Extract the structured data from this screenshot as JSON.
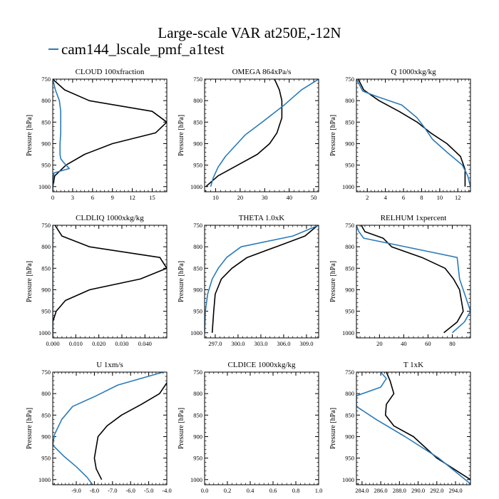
{
  "figure": {
    "title": "Large-scale VAR at250E,-12N",
    "legend": [
      {
        "label": "cam144_lscale_pmf_a1test",
        "color": "#2b7bb9",
        "marker": "—"
      }
    ],
    "colors": {
      "control": "#000000",
      "test": "#2b7bb9"
    }
  },
  "chart_data": [
    {
      "type": "line",
      "title": "CLOUD  100xfraction",
      "ylabel": "Pressure [hPa]",
      "xlabel": "",
      "xlim": [
        0,
        17.2
      ],
      "ylim": [
        1012,
        750
      ],
      "xticks": [
        0,
        3,
        6,
        9,
        12,
        15
      ],
      "xticklabels": [
        "0",
        "3",
        "6",
        "9",
        "12",
        "15"
      ],
      "yticks": [
        750,
        800,
        850,
        900,
        950,
        1000
      ],
      "yticklabels": [
        "750",
        "800",
        "850",
        "900",
        "950",
        "1000"
      ],
      "grid": false,
      "series": [
        {
          "color": "#000000",
          "x": [
            0,
            1.8,
            5.5,
            15.0,
            17.2,
            15.5,
            9.0,
            4.8,
            2.0,
            0.3,
            0,
            0
          ],
          "y": [
            750,
            775,
            800,
            825,
            850,
            875,
            900,
            925,
            950,
            975,
            1000,
            1012
          ]
        },
        {
          "name": "cam144_lscale_pmf_a1test",
          "color": "#2b7bb9",
          "x": [
            0,
            0.4,
            1.0,
            1.2,
            1.2,
            1.2,
            1.1,
            1.1,
            1.2,
            1.7,
            2.5,
            0.2,
            0,
            0
          ],
          "y": [
            750,
            775,
            800,
            825,
            850,
            875,
            900,
            925,
            935,
            945,
            958,
            968,
            990,
            1012
          ]
        }
      ]
    },
    {
      "type": "line",
      "title": "OMEGA  864xPa/s",
      "ylabel": "Pressure [hPa]",
      "xlabel": "",
      "xlim": [
        5.5,
        52
      ],
      "ylim": [
        1012,
        750
      ],
      "xticks": [
        10,
        20,
        30,
        40,
        50
      ],
      "xticklabels": [
        "10",
        "20",
        "30",
        "40",
        "50"
      ],
      "yticks": [
        750,
        800,
        850,
        900,
        950,
        1000
      ],
      "yticklabels": [
        "750",
        "800",
        "850",
        "900",
        "950",
        "1000"
      ],
      "grid": false,
      "series": [
        {
          "color": "#000000",
          "x": [
            34,
            36,
            37,
            37,
            35,
            32,
            27,
            19,
            11,
            6
          ],
          "y": [
            750,
            775,
            800,
            840,
            875,
            900,
            925,
            950,
            975,
            1000
          ]
        },
        {
          "name": "cam144_lscale_pmf_a1test",
          "color": "#2b7bb9",
          "x": [
            52,
            45,
            38,
            29,
            22,
            18,
            14,
            11,
            9,
            8
          ],
          "y": [
            750,
            775,
            810,
            850,
            880,
            905,
            930,
            955,
            980,
            1000
          ]
        }
      ]
    },
    {
      "type": "line",
      "title": "Q  1000xkg/kg",
      "ylabel": "Pressure [hPa]",
      "xlabel": "",
      "xlim": [
        0.8,
        13.4
      ],
      "ylim": [
        1012,
        750
      ],
      "xticks": [
        2,
        4,
        6,
        8,
        10,
        12
      ],
      "xticklabels": [
        "2",
        "4",
        "6",
        "8",
        "10",
        "12"
      ],
      "yticks": [
        750,
        800,
        850,
        900,
        950,
        1000
      ],
      "yticklabels": [
        "750",
        "800",
        "850",
        "900",
        "950",
        "1000"
      ],
      "grid": false,
      "series": [
        {
          "color": "#000000",
          "x": [
            1.0,
            1.6,
            3.3,
            5.5,
            7.5,
            9.0,
            10.8,
            12.3,
            12.8,
            12.8
          ],
          "y": [
            750,
            775,
            800,
            825,
            850,
            875,
            900,
            930,
            960,
            1000
          ]
        },
        {
          "name": "cam144_lscale_pmf_a1test",
          "color": "#2b7bb9",
          "x": [
            0.8,
            1.5,
            3.0,
            5.8,
            7.5,
            8.4,
            9.2,
            10.8,
            12.5,
            13.1,
            13.4
          ],
          "y": [
            750,
            778,
            790,
            810,
            840,
            865,
            890,
            920,
            950,
            975,
            1000
          ]
        }
      ]
    },
    {
      "type": "line",
      "title": "CLDLIQ  1000xkg/kg",
      "ylabel": "Pressure [hPa]",
      "xlabel": "",
      "xlim": [
        0,
        0.0495
      ],
      "ylim": [
        1012,
        750
      ],
      "xticks": [
        0,
        0.01,
        0.02,
        0.03,
        0.04
      ],
      "xticklabels": [
        "0.000",
        "0.010",
        "0.020",
        "0.030",
        "0.040"
      ],
      "yticks": [
        750,
        800,
        850,
        900,
        950,
        1000
      ],
      "yticklabels": [
        "750",
        "800",
        "850",
        "900",
        "950",
        "1000"
      ],
      "grid": false,
      "series": [
        {
          "color": "#000000",
          "x": [
            0.001,
            0.004,
            0.016,
            0.0465,
            0.0495,
            0.038,
            0.016,
            0.0055,
            0.0015,
            0,
            0,
            0
          ],
          "y": [
            750,
            775,
            800,
            825,
            850,
            875,
            900,
            925,
            950,
            975,
            1000,
            1012
          ]
        },
        {
          "name": "cam144_lscale_pmf_a1test",
          "color": "#2b7bb9",
          "x": [
            0,
            0,
            0,
            0
          ],
          "y": [
            750,
            850,
            950,
            1012
          ]
        }
      ]
    },
    {
      "type": "line",
      "title": "THETA  1.0xK",
      "ylabel": "Pressure [hPa]",
      "xlabel": "",
      "xlim": [
        295.6,
        310.6
      ],
      "ylim": [
        1012,
        750
      ],
      "xticks": [
        297,
        300,
        303,
        306,
        309
      ],
      "xticklabels": [
        "297.0",
        "300.0",
        "303.0",
        "306.0",
        "309.0"
      ],
      "yticks": [
        750,
        800,
        850,
        900,
        950,
        1000
      ],
      "yticklabels": [
        "750",
        "800",
        "850",
        "900",
        "950",
        "1000"
      ],
      "grid": false,
      "series": [
        {
          "color": "#000000",
          "x": [
            310.5,
            308.8,
            305.0,
            301.2,
            299.2,
            297.8,
            297.0,
            296.8,
            296.6
          ],
          "y": [
            750,
            775,
            800,
            825,
            850,
            875,
            910,
            950,
            1000
          ]
        },
        {
          "name": "cam144_lscale_pmf_a1test",
          "color": "#2b7bb9",
          "x": [
            310.6,
            307.2,
            300.4,
            298.5,
            297.4,
            296.6,
            296.0,
            295.7,
            295.6
          ],
          "y": [
            750,
            775,
            800,
            825,
            850,
            875,
            910,
            950,
            1000
          ]
        }
      ]
    },
    {
      "type": "line",
      "title": "RELHUM  1xpercent",
      "ylabel": "Pressure [hPa]",
      "xlabel": "",
      "xlim": [
        1,
        95
      ],
      "ylim": [
        1012,
        750
      ],
      "xticks": [
        20,
        40,
        60,
        80
      ],
      "xticklabels": [
        "20",
        "40",
        "60",
        "80"
      ],
      "yticks": [
        750,
        800,
        850,
        900,
        950,
        1000
      ],
      "yticklabels": [
        "750",
        "800",
        "850",
        "900",
        "950",
        "1000"
      ],
      "grid": false,
      "series": [
        {
          "color": "#000000",
          "x": [
            5,
            8,
            23,
            30,
            55,
            74,
            81,
            86,
            89,
            84,
            73
          ],
          "y": [
            750,
            765,
            780,
            800,
            825,
            850,
            875,
            900,
            950,
            975,
            1000
          ]
        },
        {
          "name": "cam144_lscale_pmf_a1test",
          "color": "#2b7bb9",
          "x": [
            1,
            3,
            7,
            84,
            85,
            86,
            89,
            92,
            95,
            90,
            80
          ],
          "y": [
            750,
            765,
            780,
            825,
            850,
            875,
            900,
            925,
            950,
            975,
            1000
          ]
        }
      ]
    },
    {
      "type": "line",
      "title": "U  1xm/s",
      "ylabel": "Pressure [hPa]",
      "xlabel": "",
      "xlim": [
        -10.3,
        -4.0
      ],
      "ylim": [
        1012,
        750
      ],
      "xticks": [
        -9,
        -8,
        -7,
        -6,
        -5,
        -4
      ],
      "xticklabels": [
        "-9.0",
        "-8.0",
        "-7.0",
        "-6.0",
        "-5.0",
        "-4.0"
      ],
      "yticks": [
        750,
        800,
        850,
        900,
        950,
        1000
      ],
      "yticklabels": [
        "750",
        "800",
        "850",
        "900",
        "950",
        "1000"
      ],
      "grid": false,
      "series": [
        {
          "color": "#000000",
          "x": [
            -4.0,
            -4.4,
            -5.4,
            -6.5,
            -7.3,
            -7.8,
            -8.0,
            -7.9,
            -7.6
          ],
          "y": [
            775,
            800,
            825,
            850,
            875,
            900,
            950,
            975,
            1000
          ]
        },
        {
          "name": "cam144_lscale_pmf_a1test",
          "color": "#2b7bb9",
          "x": [
            -4.2,
            -6.7,
            -7.9,
            -9.2,
            -9.8,
            -10.2,
            -10.3,
            -9.7,
            -9.0,
            -8.4,
            -8.1
          ],
          "y": [
            750,
            780,
            805,
            830,
            860,
            895,
            920,
            945,
            970,
            995,
            1012
          ]
        }
      ]
    },
    {
      "type": "line",
      "title": "CLDICE  1000xkg/kg",
      "ylabel": "Pressure [hPa]",
      "xlabel": "",
      "xlim": [
        0,
        1.0
      ],
      "ylim": [
        1012,
        750
      ],
      "xticks": [
        0,
        0.2,
        0.4,
        0.6,
        0.8,
        1.0
      ],
      "xticklabels": [
        "0.0",
        "0.2",
        "0.4",
        "0.6",
        "0.8",
        "1.0"
      ],
      "yticks": [
        750,
        800,
        850,
        900,
        950,
        1000
      ],
      "yticklabels": [
        "750",
        "800",
        "850",
        "900",
        "950",
        "1000"
      ],
      "grid": false,
      "series": []
    },
    {
      "type": "line",
      "title": "T  1xK",
      "ylabel": "Pressure [hPa]",
      "xlabel": "",
      "xlim": [
        283.4,
        295.6
      ],
      "ylim": [
        1012,
        750
      ],
      "xticks": [
        284,
        286,
        288,
        290,
        292,
        294
      ],
      "xticklabels": [
        "284.0",
        "286.0",
        "288.0",
        "290.0",
        "292.0",
        "294.0"
      ],
      "yticks": [
        750,
        800,
        850,
        900,
        950,
        1000
      ],
      "yticklabels": [
        "750",
        "800",
        "850",
        "900",
        "950",
        "1000"
      ],
      "grid": false,
      "series": [
        {
          "color": "#000000",
          "x": [
            286.6,
            287.0,
            287.4,
            286.6,
            286.5,
            287.4,
            289.5,
            292.0,
            295.6
          ],
          "y": [
            750,
            770,
            800,
            825,
            850,
            875,
            900,
            950,
            1000
          ]
        },
        {
          "name": "cam144_lscale_pmf_a1test",
          "color": "#2b7bb9",
          "x": [
            286.0,
            286.6,
            286.0,
            283.4,
            283.4,
            285.5,
            288.6,
            292.2,
            295.6
          ],
          "y": [
            750,
            765,
            785,
            805,
            830,
            860,
            900,
            950,
            1010
          ]
        }
      ]
    }
  ]
}
